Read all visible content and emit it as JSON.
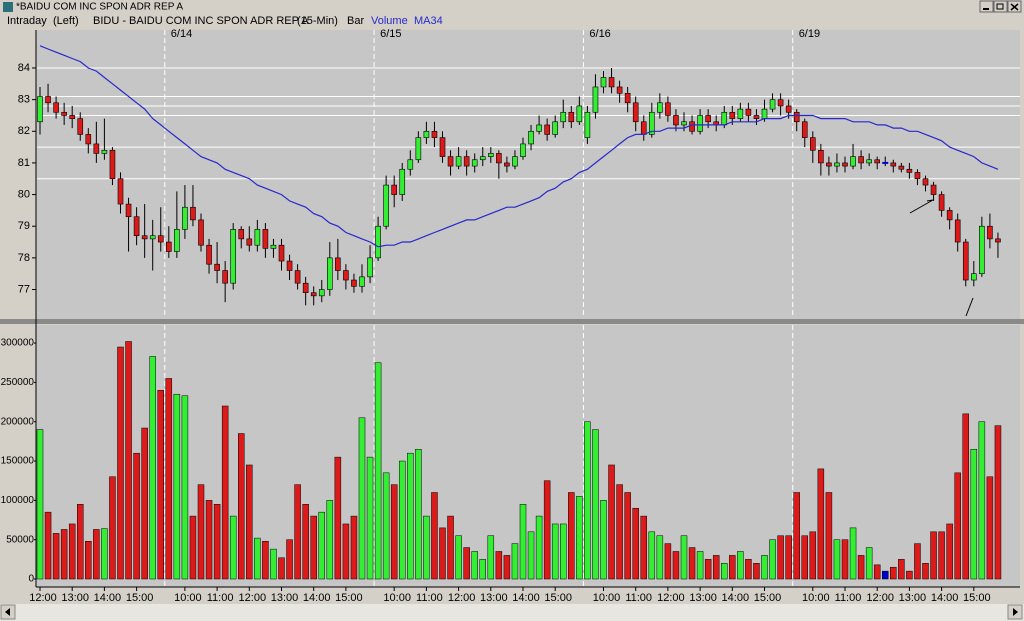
{
  "window": {
    "title": "*BAIDU COM INC SPON ADR REP A"
  },
  "header": {
    "mode": "Intraday",
    "side": "(Left)",
    "symbol": "BIDU - BAIDU COM INC SPON ADR REP A",
    "interval": "(15-Min)",
    "style": "Bar"
  },
  "chart_data": [
    {
      "type": "candlestick",
      "dates": [
        null,
        null,
        null,
        null,
        null,
        null,
        null,
        null,
        null,
        null,
        null,
        null,
        null,
        null,
        null,
        null,
        "6/14",
        null,
        null,
        null,
        null,
        null,
        null,
        null,
        null,
        null,
        null,
        null,
        null,
        null,
        null,
        null,
        null,
        null,
        null,
        null,
        null,
        null,
        null,
        null,
        null,
        null,
        "6/15",
        null,
        null,
        null,
        null,
        null,
        null,
        null,
        null,
        null,
        null,
        null,
        null,
        null,
        null,
        null,
        null,
        null,
        null,
        null,
        null,
        null,
        null,
        null,
        null,
        null,
        "6/16",
        null,
        null,
        null,
        null,
        null,
        null,
        null,
        null,
        null,
        null,
        null,
        null,
        null,
        null,
        null,
        null,
        null,
        null,
        null,
        null,
        null,
        null,
        null,
        null,
        null,
        "6/19",
        null,
        null,
        null,
        null,
        null,
        null,
        null,
        null,
        null,
        null,
        null,
        null,
        null,
        null,
        null,
        null,
        null,
        null,
        null,
        null,
        null,
        null,
        null,
        null,
        null
      ],
      "open": [
        82.3,
        83.1,
        82.9,
        82.6,
        82.5,
        82.4,
        81.9,
        81.6,
        81.3,
        81.4,
        80.5,
        79.7,
        79.3,
        78.7,
        78.6,
        78.7,
        78.5,
        78.2,
        78.9,
        79.6,
        79.2,
        78.4,
        77.8,
        77.6,
        77.2,
        78.9,
        78.6,
        78.4,
        78.9,
        78.3,
        78.4,
        77.9,
        77.6,
        77.2,
        76.9,
        76.8,
        77.0,
        78.0,
        77.6,
        77.3,
        77.1,
        77.4,
        78.0,
        79.0,
        80.3,
        80.0,
        80.8,
        81.1,
        81.8,
        82.0,
        81.8,
        81.2,
        80.9,
        81.2,
        80.9,
        81.1,
        81.2,
        81.3,
        81.0,
        80.9,
        81.2,
        81.6,
        82.0,
        82.2,
        81.9,
        82.3,
        82.6,
        82.3,
        81.8,
        82.6,
        83.4,
        83.7,
        83.4,
        83.2,
        82.9,
        82.3,
        81.9,
        82.6,
        82.9,
        82.5,
        82.2,
        82.3,
        82.0,
        82.5,
        82.3,
        82.2,
        82.6,
        82.4,
        82.7,
        82.5,
        82.4,
        82.7,
        83.0,
        82.8,
        82.6,
        82.3,
        81.8,
        81.4,
        81.0,
        80.9,
        81.0,
        80.9,
        81.2,
        81.0,
        81.1,
        81.0,
        81.0,
        80.9,
        80.8,
        80.7,
        80.5,
        80.3,
        80.0,
        79.5,
        79.2,
        78.5,
        77.3,
        77.5,
        79.0,
        78.6
      ],
      "high": [
        83.4,
        83.5,
        83.1,
        82.9,
        82.8,
        82.6,
        82.1,
        82.3,
        82.4,
        81.5,
        80.7,
        79.9,
        79.6,
        79.7,
        79.2,
        79.6,
        79.0,
        80.1,
        80.3,
        80.3,
        79.4,
        78.6,
        78.5,
        77.9,
        79.1,
        79.0,
        79.0,
        79.2,
        79.1,
        78.6,
        78.6,
        78.1,
        77.8,
        77.4,
        77.1,
        77.3,
        78.5,
        78.6,
        77.8,
        77.5,
        77.8,
        78.4,
        79.3,
        80.6,
        80.6,
        81.0,
        81.4,
        82.0,
        82.3,
        82.3,
        82.0,
        81.4,
        81.5,
        81.4,
        81.3,
        81.5,
        81.5,
        81.4,
        81.2,
        81.4,
        81.8,
        82.2,
        82.5,
        82.4,
        82.5,
        83.0,
        82.8,
        83.1,
        82.8,
        83.8,
        83.9,
        84.0,
        83.6,
        83.4,
        83.1,
        82.5,
        82.9,
        83.2,
        83.1,
        82.7,
        82.6,
        82.5,
        82.7,
        82.7,
        82.5,
        82.8,
        82.8,
        82.9,
        82.9,
        82.7,
        83.0,
        83.2,
        83.2,
        83.0,
        82.7,
        82.4,
        82.0,
        81.6,
        81.2,
        81.3,
        81.2,
        81.6,
        81.4,
        81.3,
        81.2,
        81.2,
        81.1,
        81.0,
        81.0,
        80.8,
        80.6,
        80.4,
        80.1,
        79.6,
        79.4,
        78.6,
        77.9,
        79.3,
        79.4,
        78.8
      ],
      "low": [
        81.9,
        82.6,
        82.4,
        82.2,
        82.1,
        81.7,
        81.3,
        81.0,
        81.1,
        80.3,
        79.4,
        78.2,
        78.4,
        78.0,
        77.6,
        78.2,
        78.0,
        78.0,
        78.6,
        79.0,
        78.2,
        77.5,
        77.2,
        76.6,
        77.0,
        78.3,
        78.2,
        78.2,
        78.0,
        78.0,
        77.6,
        77.3,
        77.0,
        76.5,
        76.5,
        76.6,
        76.8,
        77.3,
        77.0,
        76.9,
        76.9,
        77.2,
        77.9,
        78.9,
        79.6,
        79.8,
        80.6,
        81.0,
        81.6,
        81.5,
        81.0,
        80.6,
        80.8,
        80.6,
        80.7,
        80.9,
        81.0,
        80.5,
        80.7,
        80.8,
        81.1,
        81.4,
        81.9,
        81.7,
        81.8,
        82.1,
        82.1,
        82.2,
        81.6,
        82.4,
        83.2,
        83.2,
        82.9,
        82.6,
        82.0,
        81.7,
        81.8,
        82.4,
        82.3,
        82.0,
        82.0,
        81.9,
        81.9,
        82.1,
        82.0,
        82.1,
        82.2,
        82.3,
        82.3,
        82.2,
        82.3,
        82.6,
        82.5,
        82.4,
        82.0,
        81.5,
        81.0,
        80.6,
        80.6,
        80.7,
        80.7,
        80.8,
        80.8,
        80.9,
        80.8,
        80.9,
        80.7,
        80.7,
        80.5,
        80.3,
        80.1,
        79.8,
        79.3,
        78.9,
        78.2,
        77.1,
        77.1,
        77.4,
        78.3,
        78.0
      ],
      "close": [
        83.1,
        82.9,
        82.6,
        82.5,
        82.4,
        81.9,
        81.6,
        81.3,
        81.4,
        80.5,
        79.7,
        79.3,
        78.7,
        78.6,
        78.7,
        78.5,
        78.2,
        78.9,
        79.6,
        79.2,
        78.4,
        77.8,
        77.6,
        77.2,
        78.9,
        78.6,
        78.4,
        78.9,
        78.3,
        78.4,
        77.9,
        77.6,
        77.2,
        76.9,
        76.8,
        77.0,
        78.0,
        77.6,
        77.3,
        77.1,
        77.4,
        78.0,
        79.0,
        80.3,
        80.0,
        80.8,
        81.1,
        81.8,
        82.0,
        81.8,
        81.2,
        80.9,
        81.2,
        80.9,
        81.1,
        81.2,
        81.3,
        81.0,
        80.9,
        81.2,
        81.6,
        82.0,
        82.2,
        81.9,
        82.3,
        82.6,
        82.3,
        82.8,
        82.6,
        83.4,
        83.7,
        83.4,
        83.2,
        82.9,
        82.3,
        81.9,
        82.6,
        82.9,
        82.5,
        82.2,
        82.3,
        82.0,
        82.5,
        82.3,
        82.2,
        82.6,
        82.4,
        82.7,
        82.5,
        82.4,
        82.7,
        83.0,
        82.8,
        82.6,
        82.3,
        81.8,
        81.4,
        81.0,
        80.9,
        81.0,
        80.9,
        81.2,
        81.0,
        81.1,
        81.0,
        81.0,
        80.9,
        80.8,
        80.7,
        80.5,
        80.3,
        80.0,
        79.5,
        79.2,
        78.5,
        77.3,
        77.5,
        79.0,
        78.6,
        78.5
      ],
      "up_color": "#33ee33",
      "down_color": "#dd1a1a",
      "flat_color": "#0000cc",
      "series": [
        {
          "name": "MA34",
          "color": "#2828cc",
          "values": [
            84.7,
            84.6,
            84.5,
            84.4,
            84.3,
            84.2,
            84.0,
            83.9,
            83.7,
            83.5,
            83.3,
            83.1,
            82.9,
            82.7,
            82.4,
            82.2,
            82.0,
            81.8,
            81.6,
            81.4,
            81.2,
            81.1,
            81.0,
            80.8,
            80.7,
            80.6,
            80.5,
            80.3,
            80.2,
            80.1,
            80.0,
            79.8,
            79.7,
            79.6,
            79.4,
            79.3,
            79.1,
            79.0,
            78.8,
            78.7,
            78.6,
            78.5,
            78.35,
            78.4,
            78.4,
            78.5,
            78.5,
            78.6,
            78.7,
            78.8,
            78.9,
            79.0,
            79.1,
            79.2,
            79.2,
            79.3,
            79.4,
            79.5,
            79.6,
            79.6,
            79.7,
            79.8,
            79.9,
            80.1,
            80.2,
            80.4,
            80.5,
            80.7,
            80.8,
            81.0,
            81.2,
            81.4,
            81.6,
            81.8,
            81.9,
            81.9,
            82.0,
            82.0,
            82.1,
            82.1,
            82.1,
            82.2,
            82.2,
            82.2,
            82.2,
            82.2,
            82.3,
            82.3,
            82.3,
            82.3,
            82.4,
            82.4,
            82.4,
            82.5,
            82.5,
            82.5,
            82.5,
            82.4,
            82.4,
            82.4,
            82.4,
            82.3,
            82.3,
            82.3,
            82.2,
            82.2,
            82.1,
            82.1,
            82.0,
            82.0,
            81.9,
            81.8,
            81.7,
            81.5,
            81.4,
            81.3,
            81.2,
            81.0,
            80.9,
            80.8
          ]
        }
      ],
      "levels": [
        84.0,
        83.1,
        82.8,
        82.5,
        81.5,
        80.5
      ],
      "ylim": [
        76.1,
        85.2
      ],
      "yticks": [
        77,
        78,
        79,
        80,
        81,
        82,
        83,
        84
      ]
    },
    {
      "type": "bar",
      "categories": [
        "12:00",
        null,
        null,
        null,
        "13:00",
        null,
        null,
        null,
        "14:00",
        null,
        null,
        null,
        "15:00",
        null,
        null,
        null,
        null,
        null,
        "10:00",
        null,
        null,
        null,
        "11:00",
        null,
        null,
        null,
        "12:00",
        null,
        null,
        null,
        "13:00",
        null,
        null,
        null,
        "14:00",
        null,
        null,
        null,
        "15:00",
        null,
        null,
        null,
        null,
        null,
        "10:00",
        null,
        null,
        null,
        "11:00",
        null,
        null,
        null,
        "12:00",
        null,
        null,
        null,
        "13:00",
        null,
        null,
        null,
        "14:00",
        null,
        null,
        null,
        "15:00",
        null,
        null,
        null,
        null,
        null,
        "10:00",
        null,
        null,
        null,
        "11:00",
        null,
        null,
        null,
        "12:00",
        null,
        null,
        null,
        "13:00",
        null,
        null,
        null,
        "14:00",
        null,
        null,
        null,
        "15:00",
        null,
        null,
        null,
        null,
        null,
        "10:00",
        null,
        null,
        null,
        "11:00",
        null,
        null,
        null,
        "12:00",
        null,
        null,
        null,
        "13:00",
        null,
        null,
        null,
        "14:00",
        null,
        null,
        null,
        "15:00",
        null,
        null,
        null
      ],
      "series": [
        {
          "name": "Volume",
          "color": "#2828cc",
          "values": [
            190000,
            85000,
            58000,
            63000,
            70000,
            95000,
            48000,
            63000,
            64000,
            130000,
            295000,
            302000,
            160000,
            192000,
            283000,
            240000,
            255000,
            235000,
            233000,
            80000,
            120000,
            100000,
            95000,
            220000,
            80000,
            185000,
            145000,
            52000,
            48000,
            38000,
            27000,
            50000,
            120000,
            95000,
            80000,
            85000,
            100000,
            155000,
            70000,
            80000,
            205000,
            155000,
            275000,
            135000,
            120000,
            150000,
            160000,
            165000,
            80000,
            110000,
            65000,
            80000,
            55000,
            40000,
            35000,
            25000,
            55000,
            35000,
            30000,
            45000,
            95000,
            60000,
            80000,
            125000,
            70000,
            70000,
            110000,
            105000,
            200000,
            190000,
            100000,
            145000,
            120000,
            110000,
            90000,
            80000,
            60000,
            55000,
            45000,
            35000,
            55000,
            40000,
            35000,
            25000,
            30000,
            20000,
            30000,
            35000,
            25000,
            20000,
            30000,
            50000,
            55000,
            55000,
            110000,
            55000,
            60000,
            140000,
            110000,
            50000,
            50000,
            65000,
            30000,
            40000,
            18000,
            10000,
            15000,
            25000,
            10000,
            45000,
            20000,
            60000,
            60000,
            70000,
            135000,
            210000,
            165000,
            200000,
            130000,
            195000
          ]
        }
      ],
      "ylim": [
        0,
        323000
      ],
      "yticks": [
        0,
        50000,
        100000,
        150000,
        200000,
        250000,
        300000
      ]
    }
  ]
}
